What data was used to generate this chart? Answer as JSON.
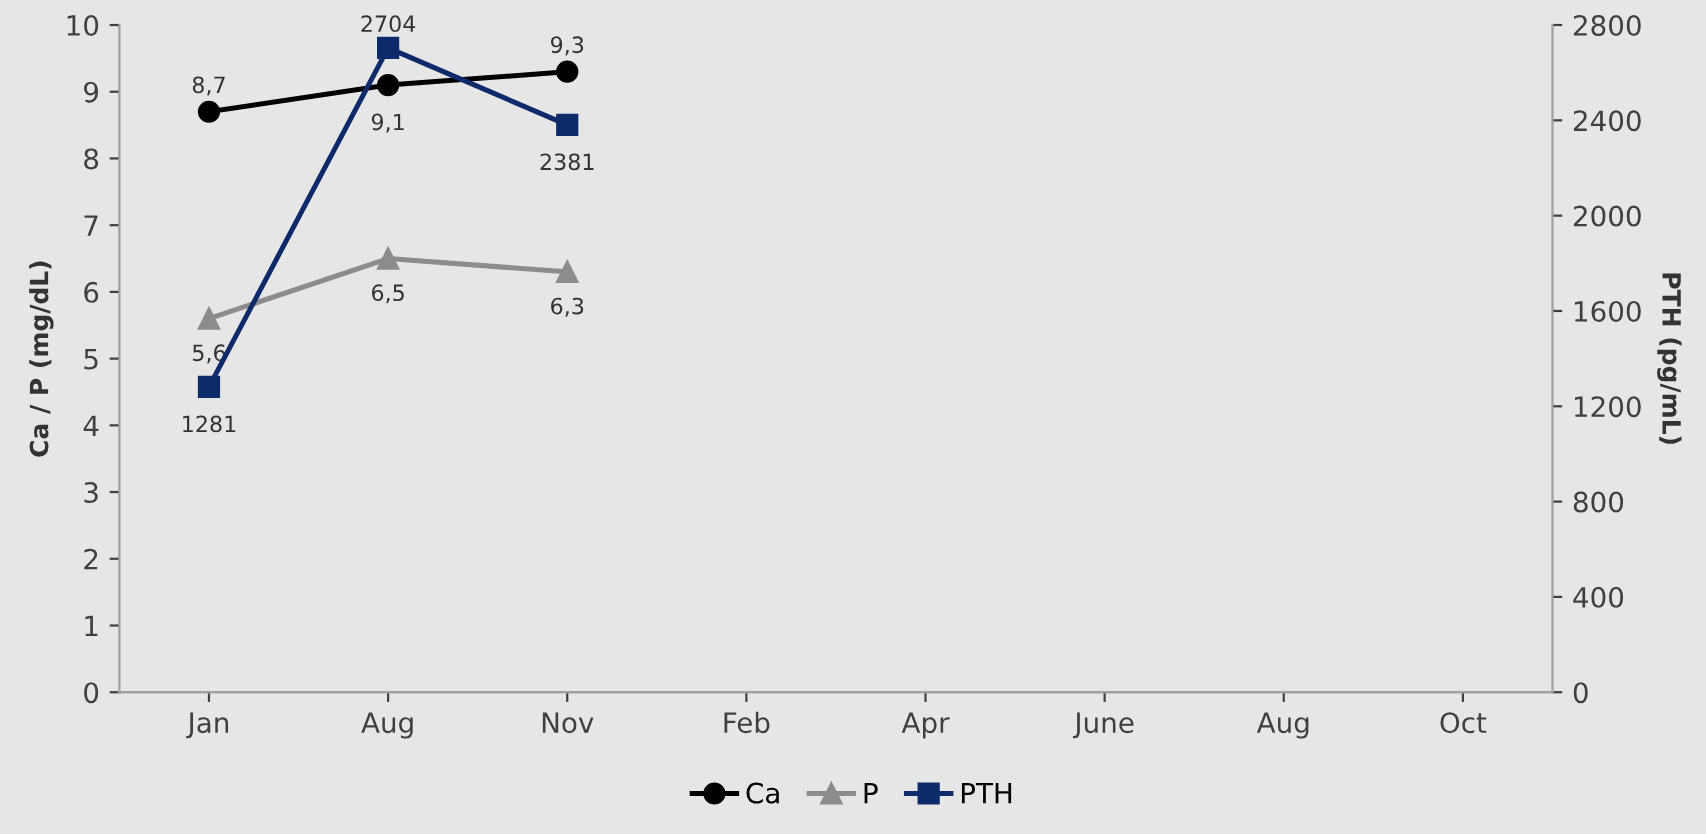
{
  "chart_data": {
    "type": "line",
    "ylabel": "Ca / P (mg/dL)",
    "y2label": "PTH (pg/mL)",
    "categories": [
      "Jan",
      "Aug",
      "Nov",
      "Feb",
      "Apr",
      "June",
      "Aug",
      "Oct"
    ],
    "ylim": [
      0,
      10
    ],
    "yticks": [
      0,
      1,
      2,
      3,
      4,
      5,
      6,
      7,
      8,
      9,
      10
    ],
    "y2lim": [
      0,
      2800
    ],
    "y2ticks": [
      0,
      400,
      800,
      1200,
      1600,
      2000,
      2400,
      2800
    ],
    "series": [
      {
        "name": "Ca",
        "color": "#000000",
        "marker": "circle",
        "values": [
          8.7,
          9.1,
          9.3,
          null,
          null,
          null,
          null,
          null
        ],
        "value_labels": [
          "8,7",
          "9,1",
          "9,3",
          null,
          null,
          null,
          null,
          null
        ]
      },
      {
        "name": "P",
        "color": "#8c8c8c",
        "marker": "triangle",
        "values": [
          5.6,
          6.5,
          6.3,
          null,
          null,
          null,
          null,
          null
        ],
        "value_labels": [
          "5,6",
          "6,5",
          "6,3",
          null,
          null,
          null,
          null,
          null
        ]
      },
      {
        "name": "PTH",
        "color": "#0d2a6b",
        "marker": "square",
        "axis": "y2",
        "values": [
          1281,
          2704,
          2381,
          null,
          null,
          null,
          null,
          null
        ],
        "value_labels": [
          "1281",
          "2704",
          "2381",
          null,
          null,
          null,
          null,
          null
        ]
      }
    ],
    "grid": false,
    "legend": "bottom"
  }
}
